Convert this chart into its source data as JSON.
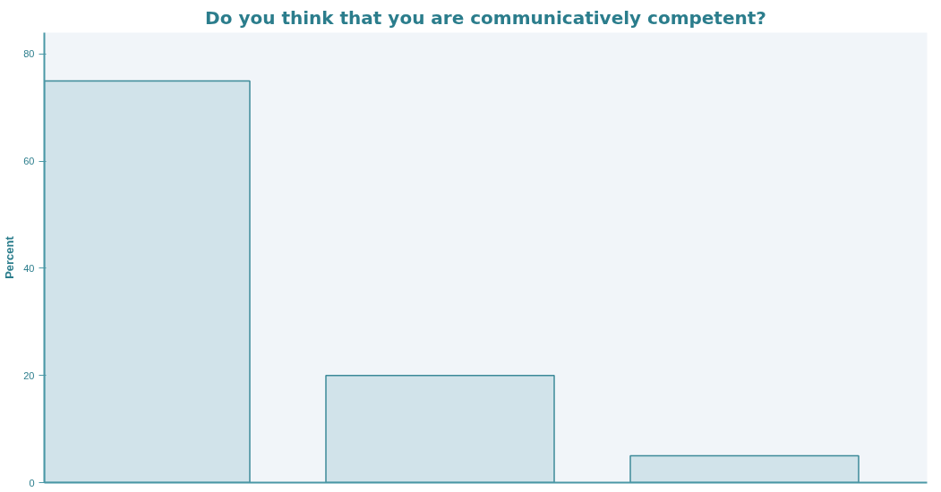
{
  "chart_data": {
    "type": "bar",
    "title": "Do you think that you are communicatively competent?",
    "ylabel": "Percent",
    "categories": [
      null,
      null,
      null
    ],
    "values": [
      75,
      20,
      5
    ],
    "color": "#d1e3ea",
    "ylim": [
      0,
      84
    ],
    "yticks": [
      0,
      20,
      40,
      60,
      80
    ],
    "grid": false
  }
}
